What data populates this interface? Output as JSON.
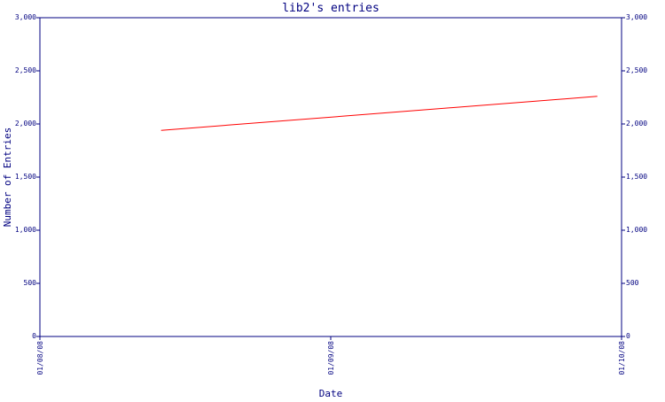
{
  "chart_data": {
    "type": "line",
    "title": "lib2's entries",
    "xlabel": "Date",
    "ylabel": "Number of Entries",
    "ylim": [
      0,
      3000
    ],
    "yticks": [
      0,
      500,
      1000,
      1500,
      2000,
      2500,
      3000
    ],
    "ytick_labels": [
      "0",
      "500",
      "1,000",
      "1,500",
      "2,000",
      "2,500",
      "3,000"
    ],
    "xlim": [
      "2008-01-08",
      "2008-01-10"
    ],
    "xticks": [
      "2008-01-08",
      "2008-01-09",
      "2008-01-10"
    ],
    "xtick_labels": [
      "01/08/08",
      "01/09/08",
      "01/10/08"
    ],
    "grid": false,
    "colors": {
      "axis": "#000080",
      "text": "#000080",
      "series": "#ff0000"
    },
    "series": [
      {
        "x": [
          "2008-01-08T10:00",
          "2008-01-09T22:00"
        ],
        "values": [
          1940,
          2260
        ]
      }
    ]
  }
}
